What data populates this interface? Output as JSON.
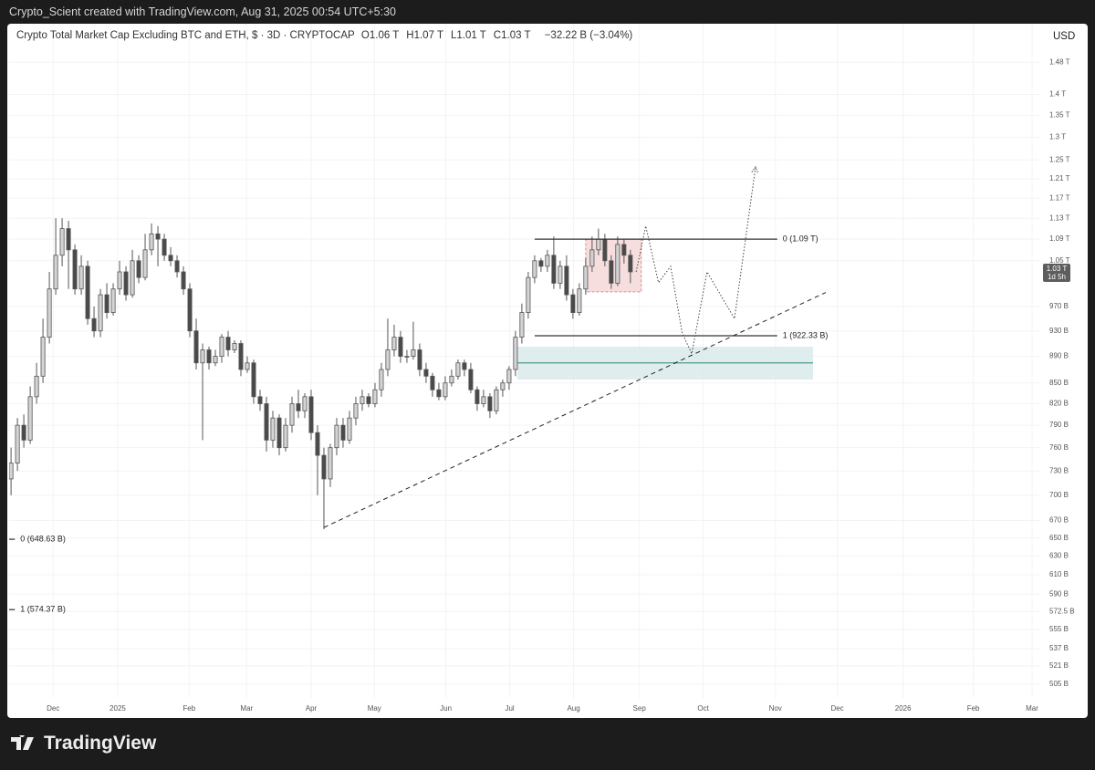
{
  "watermark": "Crypto_Scient created with TradingView.com, Aug 31, 2025 00:54 UTC+5:30",
  "brand": "TradingView",
  "chart_data": {
    "type": "candlestick",
    "title": "Crypto Total Market Cap Excluding BTC and ETH, $ · 3D · CRYPTOCAP",
    "ohlc_legend": [
      {
        "key": "O",
        "text": "1.06 T"
      },
      {
        "key": "H",
        "text": "1.07 T"
      },
      {
        "key": "L",
        "text": "1.01 T"
      },
      {
        "key": "C",
        "text": "1.03 T"
      }
    ],
    "change": "−32.22 B (−3.04%)",
    "currency": "USD",
    "log_scale": true,
    "grid": true,
    "up_color": "#d4d4d4",
    "down_color": "#4a4a4a",
    "open": [
      720,
      740,
      790,
      770,
      830,
      860,
      920,
      1000,
      1060,
      1110,
      1070,
      1000,
      1040,
      950,
      930,
      990,
      960,
      1000,
      1030,
      990,
      1050,
      1020,
      1070,
      1100,
      1090,
      1060,
      1050,
      1030,
      1000,
      930,
      880,
      900,
      880,
      890,
      920,
      900,
      910,
      870,
      880,
      830,
      820,
      770,
      800,
      760,
      790,
      820,
      810,
      830,
      780,
      750,
      720,
      760,
      790,
      770,
      800,
      820,
      830,
      820,
      840,
      870,
      900,
      920,
      890,
      890,
      900,
      870,
      860,
      840,
      830,
      850,
      860,
      880,
      870,
      840,
      820,
      830,
      810,
      840,
      850,
      870,
      920,
      960,
      1020,
      1050,
      1040,
      1060,
      1010,
      1040,
      990,
      960,
      1000,
      1040,
      1070,
      1090,
      1050,
      1010,
      1080,
      1060
    ],
    "high": [
      760,
      800,
      805,
      845,
      880,
      950,
      1030,
      1130,
      1130,
      1125,
      1080,
      1060,
      1050,
      970,
      1000,
      1010,
      1010,
      1050,
      1040,
      1070,
      1060,
      1100,
      1120,
      1115,
      1100,
      1075,
      1060,
      1040,
      1010,
      950,
      910,
      905,
      900,
      925,
      930,
      915,
      915,
      890,
      885,
      840,
      830,
      810,
      805,
      800,
      830,
      840,
      835,
      840,
      790,
      760,
      765,
      800,
      800,
      810,
      830,
      840,
      835,
      850,
      880,
      950,
      940,
      930,
      900,
      945,
      910,
      880,
      865,
      850,
      860,
      870,
      885,
      885,
      880,
      845,
      840,
      835,
      845,
      855,
      875,
      930,
      975,
      1030,
      1060,
      1055,
      1070,
      1095,
      1050,
      1060,
      1000,
      1010,
      1055,
      1095,
      1110,
      1100,
      1060,
      1095,
      1090,
      1070
    ],
    "low": [
      700,
      730,
      760,
      765,
      820,
      850,
      910,
      990,
      1040,
      1000,
      990,
      990,
      940,
      920,
      920,
      950,
      955,
      990,
      980,
      985,
      1010,
      1015,
      1060,
      1040,
      1050,
      1040,
      1020,
      990,
      920,
      870,
      770,
      870,
      875,
      880,
      890,
      895,
      860,
      865,
      820,
      810,
      755,
      760,
      750,
      755,
      780,
      800,
      800,
      770,
      700,
      660,
      710,
      750,
      760,
      765,
      790,
      810,
      815,
      815,
      830,
      860,
      890,
      880,
      880,
      885,
      860,
      850,
      830,
      825,
      825,
      845,
      855,
      860,
      835,
      810,
      815,
      800,
      805,
      830,
      840,
      860,
      910,
      950,
      1010,
      1030,
      1030,
      1000,
      1000,
      980,
      950,
      955,
      990,
      1030,
      1060,
      1040,
      1000,
      1005,
      1045,
      1010
    ],
    "close": [
      740,
      790,
      770,
      830,
      860,
      920,
      1000,
      1060,
      1110,
      1070,
      1000,
      1040,
      950,
      930,
      990,
      960,
      1000,
      1030,
      990,
      1050,
      1020,
      1070,
      1100,
      1090,
      1060,
      1050,
      1030,
      1000,
      930,
      880,
      900,
      880,
      890,
      920,
      900,
      910,
      870,
      880,
      830,
      820,
      770,
      800,
      760,
      790,
      820,
      810,
      830,
      780,
      750,
      720,
      760,
      790,
      770,
      800,
      820,
      830,
      820,
      840,
      870,
      900,
      920,
      890,
      890,
      900,
      870,
      860,
      840,
      830,
      850,
      860,
      880,
      870,
      840,
      820,
      830,
      810,
      840,
      850,
      870,
      920,
      960,
      1020,
      1050,
      1040,
      1060,
      1010,
      1040,
      990,
      960,
      1000,
      1040,
      1070,
      1090,
      1050,
      1010,
      1080,
      1060,
      1030
    ],
    "xlim": [
      -0.3,
      160.9
    ],
    "xticks": [
      {
        "value": 6.6,
        "label": "Dec"
      },
      {
        "value": 16.7,
        "label": "2025"
      },
      {
        "value": 27.9,
        "label": "Feb"
      },
      {
        "value": 36.9,
        "label": "Mar"
      },
      {
        "value": 47,
        "label": "Apr"
      },
      {
        "value": 56.9,
        "label": "May"
      },
      {
        "value": 68.1,
        "label": "Jun"
      },
      {
        "value": 78.1,
        "label": "Jul"
      },
      {
        "value": 88.1,
        "label": "Aug"
      },
      {
        "value": 98.4,
        "label": "Sep"
      },
      {
        "value": 108.4,
        "label": "Oct"
      },
      {
        "value": 119.7,
        "label": "Nov"
      },
      {
        "value": 129.4,
        "label": "Dec"
      },
      {
        "value": 139.7,
        "label": "2026"
      },
      {
        "value": 150.7,
        "label": "Feb"
      },
      {
        "value": 159.9,
        "label": "Mar"
      }
    ],
    "ylim": [
      493,
      1582
    ],
    "yticks": [
      {
        "value": 1480,
        "label": "1.48 T"
      },
      {
        "value": 1400,
        "label": "1.4 T"
      },
      {
        "value": 1350,
        "label": "1.35 T"
      },
      {
        "value": 1300,
        "label": "1.3 T"
      },
      {
        "value": 1250,
        "label": "1.25 T"
      },
      {
        "value": 1210,
        "label": "1.21 T"
      },
      {
        "value": 1170,
        "label": "1.17 T"
      },
      {
        "value": 1130,
        "label": "1.13 T"
      },
      {
        "value": 1090,
        "label": "1.09 T"
      },
      {
        "value": 1050,
        "label": "1.05 T"
      },
      {
        "value": 970,
        "label": "970 B"
      },
      {
        "value": 930,
        "label": "930 B"
      },
      {
        "value": 890,
        "label": "890 B"
      },
      {
        "value": 850,
        "label": "850 B"
      },
      {
        "value": 820,
        "label": "820 B"
      },
      {
        "value": 790,
        "label": "790 B"
      },
      {
        "value": 760,
        "label": "760 B"
      },
      {
        "value": 730,
        "label": "730 B"
      },
      {
        "value": 700,
        "label": "700 B"
      },
      {
        "value": 670,
        "label": "670 B"
      },
      {
        "value": 650,
        "label": "650 B"
      },
      {
        "value": 630,
        "label": "630 B"
      },
      {
        "value": 610,
        "label": "610 B"
      },
      {
        "value": 590,
        "label": "590 B"
      },
      {
        "value": 572.5,
        "label": "572.5 B"
      },
      {
        "value": 555,
        "label": "555 B"
      },
      {
        "value": 537,
        "label": "537 B"
      },
      {
        "value": 521,
        "label": "521 B"
      },
      {
        "value": 505,
        "label": "505 B"
      }
    ],
    "last_price": {
      "value": 1030,
      "label": "1.03 T",
      "countdown": "1d 5h"
    },
    "fib_levels": [
      {
        "value": 1090,
        "label": "0 (1.09 T)",
        "x": [
          82,
          120
        ]
      },
      {
        "value": 922.33,
        "label": "1 (922.33 B)",
        "x": [
          82,
          120
        ]
      },
      {
        "value": 648.63,
        "label": "0 (648.63 B)",
        "x": [
          -0.3,
          0.6
        ]
      },
      {
        "value": 574.37,
        "label": "1 (574.37 B)",
        "x": [
          -0.3,
          0.6
        ]
      }
    ],
    "zone": {
      "x": [
        79.3,
        125.6
      ],
      "y": [
        855,
        905
      ],
      "line": 880,
      "color": "#d7e9ea",
      "line_color": "#4f9b8f"
    },
    "box": {
      "x": [
        90,
        98.7
      ],
      "y": [
        995,
        1090
      ],
      "color": "#f7dede",
      "border": "#e08a8a"
    },
    "trendline": {
      "x": [
        49,
        127.6
      ],
      "values": [
        662,
        994
      ]
    },
    "projection": {
      "x": [
        97.9,
        99.4,
        101.4,
        103.3,
        105.1,
        106.6,
        109,
        113.3,
        116.6
      ],
      "values": [
        1030,
        1115,
        1011,
        1040,
        927,
        894,
        1030,
        950,
        1235
      ]
    }
  }
}
